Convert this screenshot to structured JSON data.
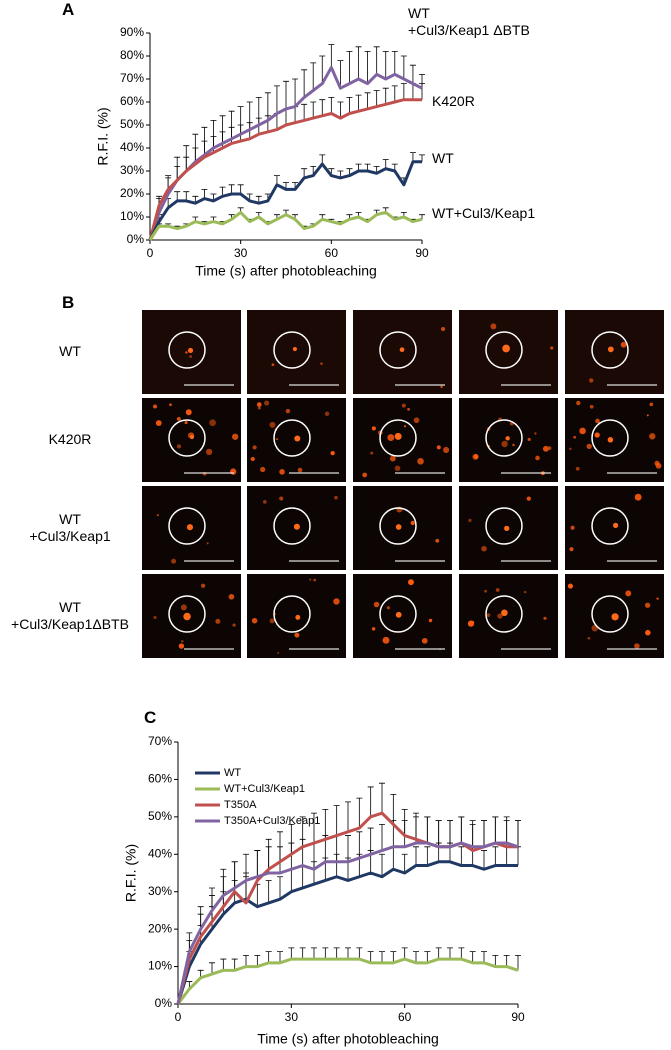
{
  "panel_labels": [
    "A",
    "B",
    "C"
  ],
  "micrograph_rows": [
    "WT",
    "K420R",
    "WT\n+Cul3/Keap1",
    "WT\n+Cul3/Keap1ΔBTB"
  ],
  "chart_data": [
    {
      "type": "line",
      "x_label": "Time (s) after photobleaching",
      "y_label": "R.F.I. (%)",
      "legend": "right",
      "x": [
        0,
        3,
        6,
        9,
        12,
        15,
        18,
        21,
        24,
        27,
        30,
        33,
        36,
        39,
        42,
        45,
        48,
        51,
        54,
        57,
        60,
        63,
        66,
        69,
        72,
        75,
        78,
        81,
        84,
        87,
        90
      ],
      "xlim": [
        0,
        90
      ],
      "xticks": [
        0,
        30,
        60,
        90
      ],
      "ylim": [
        0,
        90
      ],
      "yticks": [
        {
          "value": 0,
          "label": "0%"
        },
        {
          "value": 10,
          "label": "10%"
        },
        {
          "value": 20,
          "label": "20%"
        },
        {
          "value": 30,
          "label": "30%"
        },
        {
          "value": 40,
          "label": "40%"
        },
        {
          "value": 50,
          "label": "50%"
        },
        {
          "value": 60,
          "label": "60%"
        },
        {
          "value": 70,
          "label": "70%"
        },
        {
          "value": 80,
          "label": "80%"
        },
        {
          "value": 90,
          "label": "90%"
        }
      ],
      "series": [
        {
          "name": "WT\n+Cul3/Keap1 ΔBTB",
          "color": "#8064a2",
          "values": [
            0,
            12,
            20,
            26,
            30,
            34,
            37,
            40,
            42,
            44,
            46,
            48,
            50,
            52,
            55,
            57,
            58,
            62,
            65,
            68,
            75,
            66,
            68,
            70,
            68,
            72,
            70,
            72,
            70,
            68,
            66
          ],
          "errors": [
            0,
            6,
            8,
            10,
            11,
            12,
            12,
            12,
            12,
            12,
            12,
            12,
            12,
            12,
            12,
            12,
            12,
            12,
            12,
            12,
            10,
            12,
            14,
            14,
            14,
            12,
            12,
            10,
            10,
            8,
            6
          ]
        },
        {
          "name": "K420R",
          "color": "#c0504d",
          "values": [
            0,
            15,
            22,
            26,
            30,
            33,
            36,
            38,
            40,
            42,
            43,
            44,
            46,
            47,
            48,
            50,
            51,
            52,
            53,
            54,
            55,
            53,
            55,
            56,
            57,
            58,
            59,
            60,
            61,
            61,
            61
          ],
          "errors": [
            0,
            4,
            5,
            6,
            6,
            7,
            7,
            7,
            7,
            7,
            7,
            7,
            7,
            7,
            7,
            7,
            7,
            7,
            7,
            7,
            7,
            7,
            7,
            7,
            7,
            7,
            7,
            7,
            7,
            7,
            7
          ]
        },
        {
          "name": "WT",
          "color": "#1f3864",
          "values": [
            0,
            8,
            14,
            17,
            17,
            16,
            18,
            17,
            19,
            20,
            20,
            17,
            16,
            17,
            24,
            22,
            22,
            27,
            28,
            33,
            28,
            27,
            28,
            30,
            30,
            29,
            31,
            30,
            24,
            34,
            34
          ],
          "errors": [
            0,
            3,
            4,
            4,
            4,
            3,
            4,
            3,
            4,
            4,
            4,
            3,
            3,
            3,
            4,
            3,
            3,
            4,
            4,
            4,
            3,
            3,
            3,
            3,
            3,
            3,
            4,
            3,
            3,
            4,
            3
          ]
        },
        {
          "name": "WT+Cul3/Keap1",
          "color": "#9bbb59",
          "values": [
            0,
            6,
            6,
            5,
            6,
            8,
            7,
            8,
            7,
            9,
            12,
            8,
            10,
            7,
            9,
            11,
            9,
            5,
            6,
            9,
            8,
            7,
            9,
            10,
            8,
            11,
            12,
            9,
            10,
            8,
            9
          ],
          "errors": [
            0,
            1,
            1,
            1,
            1,
            2,
            1,
            2,
            1,
            2,
            2,
            1,
            2,
            1,
            2,
            2,
            2,
            1,
            1,
            2,
            1,
            1,
            2,
            2,
            1,
            2,
            2,
            1,
            2,
            1,
            2
          ]
        }
      ]
    },
    {
      "type": "line",
      "x_label": "Time (s) after photobleaching",
      "y_label": "R.F.I. (%)",
      "legend": "upper left",
      "x": [
        0,
        3,
        6,
        9,
        12,
        15,
        18,
        21,
        24,
        27,
        30,
        33,
        36,
        39,
        42,
        45,
        48,
        51,
        54,
        57,
        60,
        63,
        66,
        69,
        72,
        75,
        78,
        81,
        84,
        87,
        90
      ],
      "xlim": [
        0,
        90
      ],
      "xticks": [
        0,
        30,
        60,
        90
      ],
      "ylim": [
        0,
        70
      ],
      "yticks": [
        {
          "value": 0,
          "label": "0%"
        },
        {
          "value": 10,
          "label": "10%"
        },
        {
          "value": 20,
          "label": "20%"
        },
        {
          "value": 30,
          "label": "30%"
        },
        {
          "value": 40,
          "label": "40%"
        },
        {
          "value": 50,
          "label": "50%"
        },
        {
          "value": 60,
          "label": "60%"
        },
        {
          "value": 70,
          "label": "70%"
        }
      ],
      "series": [
        {
          "name": "WT",
          "color": "#1f3864",
          "values": [
            0,
            10,
            16,
            20,
            24,
            27,
            28,
            26,
            27,
            28,
            30,
            31,
            32,
            33,
            34,
            33,
            34,
            35,
            34,
            36,
            35,
            37,
            37,
            38,
            38,
            37,
            37,
            36,
            37,
            37,
            37
          ],
          "errors": [
            0,
            4,
            5,
            6,
            6,
            6,
            6,
            6,
            6,
            6,
            6,
            6,
            6,
            6,
            6,
            6,
            6,
            6,
            6,
            6,
            5,
            5,
            5,
            5,
            5,
            5,
            5,
            5,
            5,
            5,
            5
          ]
        },
        {
          "name": "WT+Cul3/Keap1",
          "color": "#9bbb59",
          "values": [
            0,
            4,
            7,
            8,
            9,
            9,
            10,
            10,
            11,
            11,
            12,
            12,
            12,
            12,
            12,
            12,
            12,
            11,
            11,
            11,
            12,
            11,
            11,
            12,
            12,
            12,
            11,
            11,
            10,
            10,
            9
          ],
          "errors": [
            0,
            2,
            2,
            3,
            3,
            3,
            3,
            3,
            3,
            3,
            3,
            3,
            3,
            3,
            3,
            3,
            3,
            3,
            3,
            3,
            3,
            3,
            3,
            3,
            3,
            3,
            3,
            3,
            3,
            3,
            4
          ]
        },
        {
          "name": "T350A",
          "color": "#c0504d",
          "values": [
            0,
            12,
            18,
            22,
            26,
            30,
            27,
            33,
            36,
            38,
            40,
            42,
            43,
            44,
            45,
            46,
            47,
            50,
            51,
            48,
            45,
            44,
            43,
            42,
            42,
            43,
            41,
            42,
            43,
            42,
            42
          ],
          "errors": [
            0,
            5,
            6,
            7,
            8,
            8,
            8,
            8,
            8,
            8,
            8,
            8,
            8,
            8,
            8,
            8,
            8,
            8,
            8,
            8,
            7,
            7,
            7,
            7,
            7,
            7,
            7,
            7,
            7,
            7,
            7
          ]
        },
        {
          "name": "T350A+Cul3/Keap1",
          "color": "#8064a2",
          "values": [
            0,
            14,
            20,
            25,
            29,
            31,
            33,
            34,
            35,
            35,
            36,
            37,
            36,
            38,
            38,
            38,
            39,
            40,
            41,
            42,
            42,
            43,
            43,
            42,
            42,
            43,
            42,
            42,
            43,
            43,
            42
          ],
          "errors": [
            0,
            5,
            6,
            6,
            7,
            7,
            7,
            7,
            7,
            7,
            7,
            7,
            7,
            7,
            7,
            7,
            7,
            7,
            7,
            7,
            7,
            7,
            7,
            7,
            7,
            7,
            7,
            7,
            7,
            7,
            7
          ]
        }
      ]
    }
  ]
}
